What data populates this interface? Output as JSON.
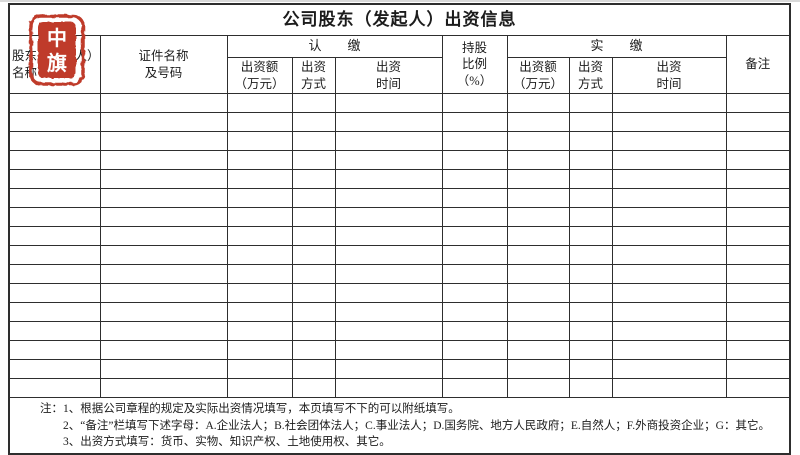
{
  "title": "公司股东（发起人）出资信息",
  "stamp": {
    "text_top": "中",
    "text_bottom": "旗",
    "color": "#bf3b2a"
  },
  "header": {
    "shareholder_name": {
      "line1": "股东（发起人）",
      "line2": "名称"
    },
    "certificate": {
      "line1": "证件名称",
      "line2": "及号码"
    },
    "subscribed_group": "认　　缴",
    "paid_group": "实　　缴",
    "subscribed": {
      "amount": {
        "line1": "出资额",
        "line2": "（万元）"
      },
      "method": {
        "line1": "出资",
        "line2": "方式"
      },
      "time": {
        "line1": "出资",
        "line2": "时间"
      }
    },
    "ratio": {
      "line1": "持股",
      "line2": "比例",
      "line3": "（%）"
    },
    "paid": {
      "amount": {
        "line1": "出资额",
        "line2": "（万元）"
      },
      "method": {
        "line1": "出资",
        "line2": "方式"
      },
      "time": {
        "line1": "出资",
        "line2": "时间"
      }
    },
    "remark": "备注"
  },
  "body": {
    "empty_rows": 16,
    "columns": 10
  },
  "notes": {
    "line1": "注：1、根据公司章程的规定及实际出资情况填写，本页填写不下的可以附纸填写。",
    "line2": "2、“备注”栏填写下述字母：A.企业法人；B.社会团体法人；C.事业法人；D.国务院、地方人民政府；E.自然人；F.外商投资企业；G：其它。",
    "line3": "3、出资方式填写：货币、实物、知识产权、土地使用权、其它。"
  },
  "colors": {
    "border": "#2e2e2e",
    "stamp_red": "#bf3b2a",
    "background": "#ffffff"
  }
}
